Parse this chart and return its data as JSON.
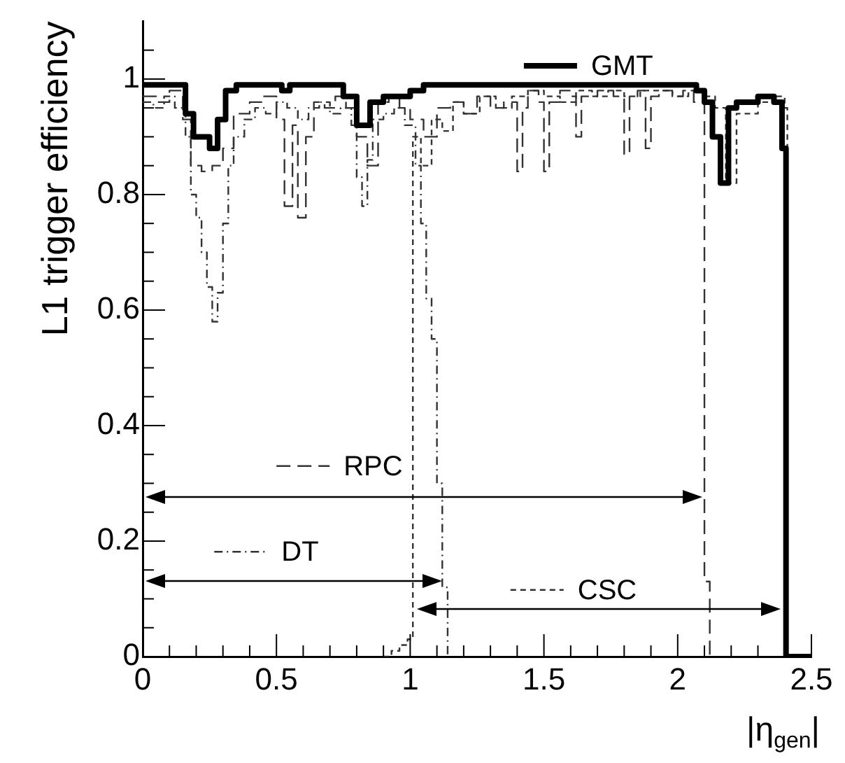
{
  "chart_data": {
    "type": "step",
    "xlabel": "|η$_{gen}$|",
    "ylabel": "L1 trigger efficiency",
    "xlim": [
      0,
      2.5
    ],
    "ylim": [
      0,
      1.1
    ],
    "xticks": [
      0,
      {
        "value": 0.1,
        "label": null
      },
      {
        "value": 0.2,
        "label": null
      },
      {
        "value": 0.3,
        "label": null
      },
      {
        "value": 0.4,
        "label": null
      },
      0.5,
      {
        "value": 0.6,
        "label": null
      },
      {
        "value": 0.7,
        "label": null
      },
      {
        "value": 0.8,
        "label": null
      },
      {
        "value": 0.9,
        "label": null
      },
      1,
      {
        "value": 1.1,
        "label": null
      },
      {
        "value": 1.2,
        "label": null
      },
      {
        "value": 1.3,
        "label": null
      },
      {
        "value": 1.4,
        "label": null
      },
      1.5,
      {
        "value": 1.6,
        "label": null
      },
      {
        "value": 1.7,
        "label": null
      },
      {
        "value": 1.8,
        "label": null
      },
      {
        "value": 1.9,
        "label": null
      },
      2,
      {
        "value": 2.1,
        "label": null
      },
      {
        "value": 2.2,
        "label": null
      },
      {
        "value": 2.3,
        "label": null
      },
      {
        "value": 2.4,
        "label": null
      },
      2.5
    ],
    "yticks": [
      0,
      {
        "value": 0.05,
        "label": null
      },
      {
        "value": 0.1,
        "label": null
      },
      {
        "value": 0.15,
        "label": null
      },
      0.2,
      {
        "value": 0.25,
        "label": null
      },
      {
        "value": 0.3,
        "label": null
      },
      {
        "value": 0.35,
        "label": null
      },
      0.4,
      {
        "value": 0.45,
        "label": null
      },
      {
        "value": 0.5,
        "label": null
      },
      {
        "value": 0.55,
        "label": null
      },
      0.6,
      {
        "value": 0.65,
        "label": null
      },
      {
        "value": 0.7,
        "label": null
      },
      {
        "value": 0.75,
        "label": null
      },
      0.8,
      {
        "value": 0.85,
        "label": null
      },
      {
        "value": 0.9,
        "label": null
      },
      {
        "value": 0.95,
        "label": null
      },
      1,
      {
        "value": 1.05,
        "label": null
      }
    ],
    "grid": false,
    "legend": "center",
    "series": [
      {
        "name": "GMT",
        "color": "#000000",
        "line_style": "solid",
        "x": [
          0,
          0.16,
          0.19,
          0.25,
          0.28,
          0.31,
          0.35,
          0.52,
          0.55,
          0.75,
          0.8,
          0.85,
          0.9,
          1.0,
          1.05,
          2.07,
          2.1,
          2.13,
          2.16,
          2.19,
          2.22,
          2.3,
          2.36,
          2.39,
          2.405,
          2.5
        ],
        "values": [
          0.99,
          0.94,
          0.9,
          0.88,
          0.93,
          0.98,
          0.99,
          0.98,
          0.99,
          0.97,
          0.92,
          0.96,
          0.97,
          0.98,
          0.99,
          0.98,
          0.96,
          0.9,
          0.82,
          0.95,
          0.96,
          0.97,
          0.96,
          0.88,
          0,
          0
        ]
      },
      {
        "name": "RPC",
        "color": "#333333",
        "line_style": "dashed",
        "x": [
          0,
          0.05,
          0.1,
          0.15,
          0.18,
          0.22,
          0.26,
          0.3,
          0.34,
          0.4,
          0.45,
          0.5,
          0.53,
          0.56,
          0.58,
          0.61,
          0.64,
          0.68,
          0.72,
          0.76,
          0.8,
          0.84,
          0.88,
          0.92,
          0.96,
          1.0,
          1.05,
          1.1,
          1.15,
          1.2,
          1.25,
          1.3,
          1.35,
          1.4,
          1.42,
          1.44,
          1.48,
          1.5,
          1.52,
          1.56,
          1.6,
          1.62,
          1.64,
          1.7,
          1.76,
          1.8,
          1.82,
          1.85,
          1.88,
          1.9,
          1.93,
          1.98,
          2.02,
          2.06,
          2.08,
          2.1,
          2.12
        ],
        "values": [
          0.97,
          0.96,
          0.98,
          0.93,
          0.85,
          0.84,
          0.85,
          0.88,
          0.94,
          0.96,
          0.97,
          0.93,
          0.78,
          0.92,
          0.76,
          0.9,
          0.96,
          0.95,
          0.97,
          0.95,
          0.9,
          0.85,
          0.96,
          0.97,
          0.95,
          0.93,
          0.9,
          0.95,
          0.96,
          0.94,
          0.97,
          0.95,
          0.96,
          0.84,
          0.95,
          0.98,
          0.96,
          0.84,
          0.96,
          0.98,
          0.97,
          0.9,
          0.97,
          0.98,
          0.97,
          0.87,
          0.97,
          0.98,
          0.88,
          0.97,
          0.98,
          0.97,
          0.98,
          0.96,
          0.96,
          0.13,
          0
        ]
      },
      {
        "name": "DT",
        "color": "#333333",
        "line_style": "dashed",
        "x": [
          0,
          0.04,
          0.08,
          0.12,
          0.16,
          0.18,
          0.2,
          0.22,
          0.24,
          0.26,
          0.28,
          0.3,
          0.32,
          0.34,
          0.38,
          0.42,
          0.46,
          0.5,
          0.54,
          0.58,
          0.62,
          0.66,
          0.7,
          0.74,
          0.78,
          0.8,
          0.82,
          0.84,
          0.86,
          0.9,
          0.94,
          0.98,
          1.02,
          1.04,
          1.06,
          1.08,
          1.1,
          1.12,
          1.14
        ],
        "values": [
          0.96,
          0.95,
          0.97,
          0.95,
          0.9,
          0.8,
          0.76,
          0.7,
          0.64,
          0.58,
          0.63,
          0.75,
          0.85,
          0.9,
          0.93,
          0.95,
          0.94,
          0.96,
          0.95,
          0.93,
          0.95,
          0.96,
          0.94,
          0.95,
          0.92,
          0.83,
          0.78,
          0.86,
          0.93,
          0.94,
          0.95,
          0.92,
          0.85,
          0.75,
          0.62,
          0.55,
          0.3,
          0.12,
          0
        ]
      },
      {
        "name": "CSC",
        "color": "#333333",
        "line_style": "dashed",
        "x": [
          0.9,
          0.93,
          0.96,
          0.99,
          1.01,
          1.04,
          1.08,
          1.12,
          1.16,
          1.2,
          1.26,
          1.32,
          1.38,
          1.44,
          1.5,
          1.56,
          1.62,
          1.68,
          1.74,
          1.8,
          1.86,
          1.92,
          1.98,
          2.04,
          2.1,
          2.14,
          2.18,
          2.22,
          2.3,
          2.36,
          2.4,
          2.41
        ],
        "values": [
          0,
          0.01,
          0.02,
          0.03,
          0.9,
          0.85,
          0.93,
          0.91,
          0.96,
          0.94,
          0.97,
          0.95,
          0.97,
          0.98,
          0.97,
          0.96,
          0.98,
          0.97,
          0.98,
          0.97,
          0.98,
          0.98,
          0.97,
          0.98,
          0.97,
          0.95,
          0.82,
          0.94,
          0.96,
          0.97,
          0.95,
          0
        ]
      }
    ]
  }
}
